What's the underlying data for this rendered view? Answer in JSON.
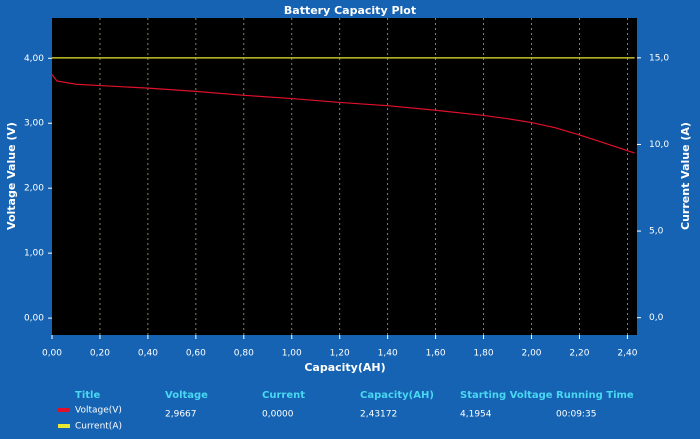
{
  "chart_data": {
    "type": "line",
    "title": "Battery Capacity Plot",
    "x_label": "Capacity(AH)",
    "y_label": "Voltage Value (V)",
    "y2_label": "Current Value (A)",
    "x": [
      0,
      0.02,
      0.1,
      0.2,
      0.4,
      0.6,
      0.8,
      1.0,
      1.2,
      1.4,
      1.6,
      1.8,
      1.9,
      2.0,
      2.1,
      2.2,
      2.3,
      2.43
    ],
    "series": [
      {
        "name": "Voltage(V)",
        "color": "#e0102a",
        "values": [
          3.75,
          3.65,
          3.6,
          3.58,
          3.54,
          3.49,
          3.43,
          3.38,
          3.32,
          3.27,
          3.2,
          3.12,
          3.07,
          3.01,
          2.93,
          2.82,
          2.7,
          2.54
        ]
      },
      {
        "name": "Current(A)",
        "color": "#e8e830",
        "axis": "y2",
        "values": [
          15,
          15,
          15,
          15,
          15,
          15,
          15,
          15,
          15,
          15,
          15,
          15,
          15,
          15,
          15,
          15,
          15,
          15
        ]
      }
    ],
    "xlim": [
      0,
      2.44
    ],
    "xticks": [
      {
        "value": 0,
        "label": "0,00"
      },
      {
        "value": 0.2,
        "label": "0,20"
      },
      {
        "value": 0.4,
        "label": "0,40"
      },
      {
        "value": 0.6,
        "label": "0,60"
      },
      {
        "value": 0.8,
        "label": "0,80"
      },
      {
        "value": 1.0,
        "label": "1,00"
      },
      {
        "value": 1.2,
        "label": "1,20"
      },
      {
        "value": 1.4,
        "label": "1,40"
      },
      {
        "value": 1.6,
        "label": "1,60"
      },
      {
        "value": 1.8,
        "label": "1,80"
      },
      {
        "value": 2.0,
        "label": "2,00"
      },
      {
        "value": 2.2,
        "label": "2,20"
      },
      {
        "value": 2.4,
        "label": "2,40"
      }
    ],
    "ylim": [
      -0.26,
      4.62
    ],
    "yticks": [
      {
        "value": 0,
        "label": "0,00"
      },
      {
        "value": 1,
        "label": "1,00"
      },
      {
        "value": 2,
        "label": "2,00"
      },
      {
        "value": 3,
        "label": "3,00"
      },
      {
        "value": 4,
        "label": "4,00"
      }
    ],
    "y2lim": [
      -1,
      17.3
    ],
    "y2ticks": [
      {
        "value": 0,
        "label": "0,0"
      },
      {
        "value": 5,
        "label": "5,0"
      },
      {
        "value": 10,
        "label": "10,0"
      },
      {
        "value": 15,
        "label": "15,0"
      }
    ],
    "grid": true
  },
  "readout": {
    "headers": [
      "Title",
      "Voltage",
      "Current",
      "Capacity(AH)",
      "Starting Voltage",
      "Running Time"
    ],
    "values": [
      "2,9667",
      "0,0000",
      "2,43172",
      "4,1954",
      "00:09:35"
    ]
  }
}
